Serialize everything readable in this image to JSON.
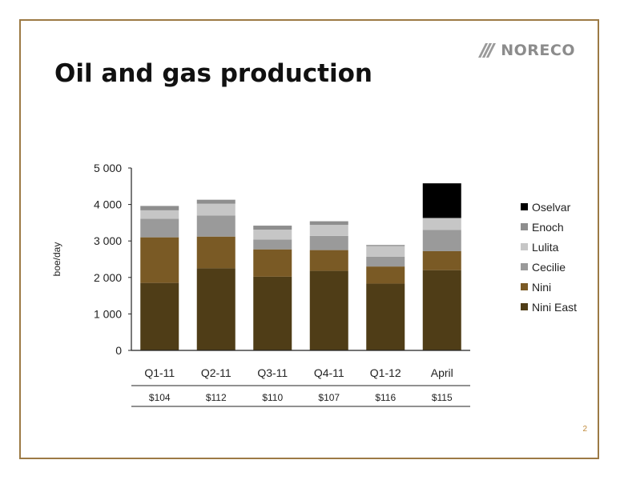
{
  "slide": {
    "title": "Oil and gas production",
    "logo_text": "NORECO",
    "page_number": "2",
    "colors": {
      "border": "#9c7a45",
      "page_number": "#c08a3a"
    }
  },
  "chart_data": {
    "type": "bar",
    "stacked": true,
    "categories": [
      "Q1-11",
      "Q2-11",
      "Q3-11",
      "Q4-11",
      "Q1-12",
      "April"
    ],
    "price_row": [
      "$104",
      "$112",
      "$110",
      "$107",
      "$116",
      "$115"
    ],
    "ylabel": "boe/day",
    "ylim": [
      0,
      5000
    ],
    "yticks": [
      {
        "value": 0,
        "label": "0"
      },
      {
        "value": 1000,
        "label": "1 000"
      },
      {
        "value": 2000,
        "label": "2 000"
      },
      {
        "value": 3000,
        "label": "3 000"
      },
      {
        "value": 4000,
        "label": "4 000"
      },
      {
        "value": 5000,
        "label": "5 000"
      }
    ],
    "grid": false,
    "legend": "right",
    "series": [
      {
        "name": "Nini East",
        "color": "#4f3d17",
        "values": [
          1850,
          2250,
          2020,
          2180,
          1830,
          2200
        ]
      },
      {
        "name": "Nini",
        "color": "#7a5a25",
        "values": [
          1250,
          870,
          750,
          570,
          470,
          520
        ]
      },
      {
        "name": "Cecilie",
        "color": "#9a9a9a",
        "values": [
          510,
          580,
          270,
          390,
          270,
          580
        ]
      },
      {
        "name": "Lulita",
        "color": "#c6c6c6",
        "values": [
          230,
          320,
          270,
          300,
          290,
          330
        ]
      },
      {
        "name": "Enoch",
        "color": "#8e8e8e",
        "values": [
          120,
          110,
          110,
          100,
          30,
          0
        ]
      },
      {
        "name": "Oselvar",
        "color": "#000000",
        "values": [
          0,
          0,
          0,
          0,
          0,
          950
        ]
      }
    ]
  }
}
